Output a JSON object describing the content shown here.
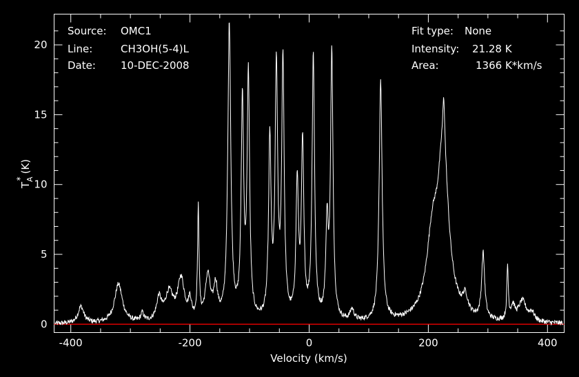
{
  "colors": {
    "background": "#000000",
    "foreground": "#ffffff",
    "baseline": "#ff0000"
  },
  "header_left": {
    "source_label": "Source:",
    "source_value": "OMC1",
    "line_label": "Line:",
    "line_value": "CH3OH(5-4)L",
    "date_label": "Date:",
    "date_value": "10-DEC-2008"
  },
  "header_right": {
    "fit_label": "Fit type:",
    "fit_value": "None",
    "intensity_label": "Intensity:",
    "intensity_value": "21.28 K",
    "area_label": "Area:",
    "area_value": "1366 K*km/s"
  },
  "chart_data": {
    "type": "line",
    "title": "",
    "xlabel": "Velocity (km/s)",
    "ylabel_main": "T",
    "ylabel_sup": "*",
    "ylabel_sub": "A",
    "ylabel_unit": "(K)",
    "xlim": [
      -428,
      428
    ],
    "ylim": [
      -0.6,
      22.2
    ],
    "x_ticks": [
      -400,
      -200,
      0,
      200,
      400
    ],
    "x_tick_labels": [
      "-400",
      "-200",
      "0",
      "200",
      "400"
    ],
    "y_ticks": [
      0,
      5,
      10,
      15,
      20
    ],
    "y_tick_labels": [
      "0",
      "5",
      "10",
      "15",
      "20"
    ],
    "baseline_y": 0,
    "grid": false,
    "series": [
      {
        "color": "#ffffff",
        "peaks": [
          {
            "x": -383,
            "y": 1.2,
            "w": 6
          },
          {
            "x": -320,
            "y": 2.8,
            "w": 8
          },
          {
            "x": -280,
            "y": 0.6,
            "w": 3
          },
          {
            "x": -252,
            "y": 1.6,
            "w": 5
          },
          {
            "x": -235,
            "y": 2.0,
            "w": 8
          },
          {
            "x": -215,
            "y": 3.0,
            "w": 7
          },
          {
            "x": -200,
            "y": 1.3,
            "w": 3
          },
          {
            "x": -186,
            "y": 7.9,
            "w": 1.5
          },
          {
            "x": -170,
            "y": 3.2,
            "w": 5
          },
          {
            "x": -157,
            "y": 2.3,
            "w": 4
          },
          {
            "x": -134,
            "y": 21.2,
            "w": 3
          },
          {
            "x": -112,
            "y": 15.4,
            "w": 2.5
          },
          {
            "x": -102,
            "y": 17.3,
            "w": 2.5
          },
          {
            "x": -66,
            "y": 12.6,
            "w": 2.5
          },
          {
            "x": -55,
            "y": 17.8,
            "w": 2.5
          },
          {
            "x": -44,
            "y": 18.4,
            "w": 2.5
          },
          {
            "x": -20,
            "y": 9.6,
            "w": 2.5
          },
          {
            "x": -11,
            "y": 12.3,
            "w": 2.5
          },
          {
            "x": 7,
            "y": 18.9,
            "w": 2.5
          },
          {
            "x": 30,
            "y": 6.5,
            "w": 2.5
          },
          {
            "x": 38,
            "y": 19.0,
            "w": 2.5
          },
          {
            "x": 72,
            "y": 0.8,
            "w": 4
          },
          {
            "x": 120,
            "y": 17.2,
            "w": 3
          },
          {
            "x": 207,
            "y": 5.2,
            "w": 12
          },
          {
            "x": 225,
            "y": 11.5,
            "w": 11
          },
          {
            "x": 226,
            "y": 3.2,
            "w": 2
          },
          {
            "x": 262,
            "y": 1.2,
            "w": 5
          },
          {
            "x": 292,
            "y": 4.7,
            "w": 3
          },
          {
            "x": 333,
            "y": 3.8,
            "w": 1.5
          },
          {
            "x": 342,
            "y": 1.0,
            "w": 4
          },
          {
            "x": 358,
            "y": 1.5,
            "w": 8
          },
          {
            "x": 374,
            "y": 0.6,
            "w": 5
          }
        ]
      }
    ]
  }
}
